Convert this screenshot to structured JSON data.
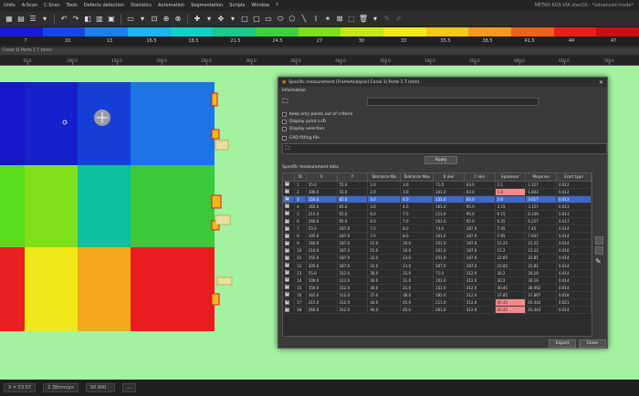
{
  "menu": {
    "items": [
      "Units",
      "A-Scan",
      "C-Scan",
      "Tools",
      "Defects detection",
      "Statistics",
      "Automation",
      "Segmentation",
      "Scripts",
      "Window",
      "?"
    ],
    "title": "METAN KGS.VIA    stacOS - *advanced mode*"
  },
  "colorbar": {
    "colors": [
      "#1a1ad6",
      "#1747e8",
      "#1a7ff0",
      "#1ab4f0",
      "#12d1c8",
      "#18c98a",
      "#3ed13e",
      "#7ee01a",
      "#c6e81a",
      "#f2e81a",
      "#f5c81a",
      "#f59a1a",
      "#f2601a",
      "#e8201a",
      "#c81010"
    ],
    "labels": [
      "7",
      "10",
      "13",
      "16.5",
      "18.5",
      "21.5",
      "24.5",
      "27",
      "30",
      "33",
      "35.5",
      "38.5",
      "41.5",
      "44",
      "47"
    ]
  },
  "tab": {
    "label": "Canal 1| Porte 1 T (mm)"
  },
  "ruler": {
    "labels": [
      "50.0",
      "100.0",
      "150.0",
      "200.0",
      "250.0",
      "300.0",
      "350.0",
      "400.0",
      "450.0",
      "500.0",
      "550.0",
      "600.0",
      "650.0",
      "700.0"
    ]
  },
  "canvas": {
    "background": "#a3f2a0",
    "tiles": [
      {
        "color": "#1616c8"
      },
      {
        "color": "#1620cc"
      },
      {
        "color": "#1440d6"
      },
      {
        "color": "#1c74e6"
      },
      {
        "color": "#5adb1e"
      },
      {
        "color": "#7fe01a"
      },
      {
        "color": "#0cc0a0"
      },
      {
        "color": "#3bc83b"
      },
      {
        "color": "#e82020"
      },
      {
        "color": "#f2e81a"
      },
      {
        "color": "#f5a81a"
      },
      {
        "color": "#e81e1e"
      }
    ]
  },
  "status": {
    "coords": "X = 53.57",
    "zoom": "2.38mm/px",
    "value": "S0.000 ..",
    "extra": "..."
  },
  "dialog": {
    "title": "Specific measurement [FrameAnalysis] Canal 1| Porte 1 T (mm)",
    "info_label": "Information",
    "options": [
      {
        "label": "Keep only points out of criteria",
        "checked": false
      },
      {
        "label": "Display point n.ID",
        "checked": false
      },
      {
        "label": "Display selection",
        "checked": false
      },
      {
        "label": "CAD fitting file",
        "checked": false
      }
    ],
    "apply_label": "Apply",
    "table_label": "Specific measurement data",
    "columns": [
      "",
      "ID",
      "X",
      "Y",
      "Tolérance Min",
      "Tolérance Max",
      "X réel",
      "Y réel",
      "Epaisseur",
      "Moyenne",
      "Ecart type"
    ],
    "rows": [
      {
        "id": "1",
        "x": "55.0",
        "y": "55.0",
        "tmin": "2.0",
        "tmax": "3.0",
        "xr": "71.0",
        "yr": "63.0",
        "ep": "2.1",
        "moy": "2.127",
        "et": "0.012",
        "checked": true,
        "selected": false,
        "hl": false
      },
      {
        "id": "2",
        "x": "100.0",
        "y": "55.0",
        "tmin": "2.0",
        "tmax": "3.0",
        "xr": "101.0",
        "yr": "63.0",
        "ep": "1.8",
        "moy": "1.843",
        "et": "0.012",
        "checked": true,
        "selected": false,
        "hl": true
      },
      {
        "id": "3",
        "x": "150.0",
        "y": "65.0",
        "tmin": "3.0",
        "tmax": "4.0",
        "xr": "151.0",
        "yr": "64.0",
        "ep": "3.6",
        "moy": "3.617",
        "et": "0.013",
        "checked": true,
        "selected": true,
        "hl": false
      },
      {
        "id": "4",
        "x": "165.0",
        "y": "65.0",
        "tmin": "3.0",
        "tmax": "4.0",
        "xr": "161.0",
        "yr": "95.0",
        "ep": "3.15",
        "moy": "3.157",
        "et": "0.013",
        "checked": true,
        "selected": false,
        "hl": false
      },
      {
        "id": "5",
        "x": "215.0",
        "y": "65.0",
        "tmin": "6.0",
        "tmax": "7.0",
        "xr": "211.0",
        "yr": "95.0",
        "ep": "6.15",
        "moy": "6.149",
        "et": "0.013",
        "checked": true,
        "selected": false,
        "hl": false
      },
      {
        "id": "6",
        "x": "260.0",
        "y": "65.0",
        "tmin": "6.0",
        "tmax": "7.0",
        "xr": "261.0",
        "yr": "95.0",
        "ep": "6.25",
        "moy": "6.227",
        "et": "0.017",
        "checked": true,
        "selected": false,
        "hl": false
      },
      {
        "id": "7",
        "x": "55.0",
        "y": "187.0",
        "tmin": "7.0",
        "tmax": "8.0",
        "xr": "74.0",
        "yr": "187.0",
        "ep": "7.45",
        "moy": "7.45",
        "et": "0.014",
        "checked": true,
        "selected": false,
        "hl": false
      },
      {
        "id": "8",
        "x": "105.0",
        "y": "187.0",
        "tmin": "7.0",
        "tmax": "8.0",
        "xr": "101.0",
        "yr": "187.0",
        "ep": "7.65",
        "moy": "7.647",
        "et": "0.014",
        "checked": true,
        "selected": false,
        "hl": false
      },
      {
        "id": "9",
        "x": "160.0",
        "y": "187.0",
        "tmin": "15.0",
        "tmax": "16.0",
        "xr": "151.0",
        "yr": "187.0",
        "ep": "15.25",
        "moy": "15.22",
        "et": "0.014",
        "checked": true,
        "selected": false,
        "hl": false
      },
      {
        "id": "10",
        "x": "210.0",
        "y": "187.0",
        "tmin": "15.0",
        "tmax": "16.0",
        "xr": "201.0",
        "yr": "187.0",
        "ep": "15.2",
        "moy": "15.22",
        "et": "0.016",
        "checked": true,
        "selected": false,
        "hl": false
      },
      {
        "id": "11",
        "x": "255.0",
        "y": "187.0",
        "tmin": "22.0",
        "tmax": "23.0",
        "xr": "251.0",
        "yr": "187.0",
        "ep": "22.85",
        "moy": "22.81",
        "et": "0.014",
        "checked": true,
        "selected": false,
        "hl": false
      },
      {
        "id": "12",
        "x": "305.0",
        "y": "187.0",
        "tmin": "22.0",
        "tmax": "23.0",
        "xr": "307.0",
        "yr": "187.0",
        "ep": "22.85",
        "moy": "22.81",
        "et": "0.014",
        "checked": true,
        "selected": false,
        "hl": false
      },
      {
        "id": "13",
        "x": "55.0",
        "y": "312.0",
        "tmin": "30.0",
        "tmax": "31.0",
        "xr": "71.0",
        "yr": "312.0",
        "ep": "30.2",
        "moy": "30.18",
        "et": "0.014",
        "checked": true,
        "selected": false,
        "hl": false
      },
      {
        "id": "14",
        "x": "100.0",
        "y": "312.0",
        "tmin": "30.0",
        "tmax": "31.0",
        "xr": "101.0",
        "yr": "312.0",
        "ep": "30.2",
        "moy": "30.19",
        "et": "0.014",
        "checked": true,
        "selected": false,
        "hl": false
      },
      {
        "id": "15",
        "x": "150.0",
        "y": "312.0",
        "tmin": "30.0",
        "tmax": "31.0",
        "xr": "151.0",
        "yr": "312.0",
        "ep": "30.45",
        "moy": "30.462",
        "et": "0.014",
        "checked": true,
        "selected": false,
        "hl": false
      },
      {
        "id": "16",
        "x": "165.0",
        "y": "312.0",
        "tmin": "37.0",
        "tmax": "38.0",
        "xr": "181.0",
        "yr": "312.0",
        "ep": "37.85",
        "moy": "37.867",
        "et": "0.018",
        "checked": true,
        "selected": false,
        "hl": false
      },
      {
        "id": "17",
        "x": "215.0",
        "y": "312.0",
        "tmin": "44.0",
        "tmax": "45.0",
        "xr": "211.0",
        "yr": "312.0",
        "ep": "45.45",
        "moy": "45.442",
        "et": "0.021",
        "checked": true,
        "selected": false,
        "hl": true
      },
      {
        "id": "18",
        "x": "260.0",
        "y": "312.0",
        "tmin": "44.0",
        "tmax": "45.0",
        "xr": "261.0",
        "yr": "312.0",
        "ep": "45.45",
        "moy": "45.443",
        "et": "0.014",
        "checked": true,
        "selected": false,
        "hl": true
      }
    ],
    "export_label": "Export",
    "close_label": "Close"
  }
}
